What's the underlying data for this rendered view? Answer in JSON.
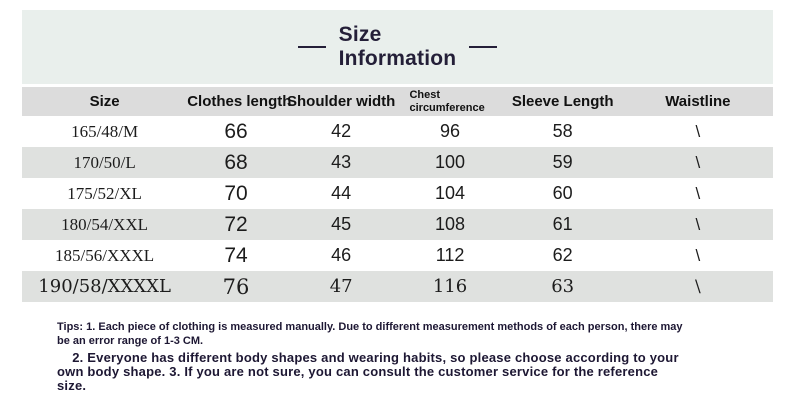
{
  "title": {
    "line1": "Size",
    "line2": "Information"
  },
  "table": {
    "headers": [
      "Size",
      "Clothes length",
      "Shoulder width",
      "Chest circumference",
      "Sleeve Length",
      "Waistline"
    ],
    "rows": [
      [
        "165/48/M",
        "66",
        "42",
        "96",
        "58",
        "\\"
      ],
      [
        "170/50/L",
        "68",
        "43",
        "100",
        "59",
        "\\"
      ],
      [
        "175/52/XL",
        "70",
        "44",
        "104",
        "60",
        "\\"
      ],
      [
        "180/54/XXL",
        "72",
        "45",
        "108",
        "61",
        "\\"
      ],
      [
        "185/56/XXXL",
        "74",
        "46",
        "112",
        "62",
        "\\"
      ],
      [
        "190/58/XXXXL",
        "76",
        "47",
        "116",
        "63",
        "\\"
      ]
    ]
  },
  "tips": {
    "small": "Tips: 1. Each piece of clothing is measured manually. Due to different measurement methods of each person, there may\nbe an error range of 1-3 CM.",
    "large": "    2. Everyone has different body shapes and wearing habits, so please choose according to your\nown body shape. 3. If you are not sure, you can consult the customer service for the reference\nsize."
  },
  "colors": {
    "title_panel_bg": "#e9efec",
    "header_row_bg": "#dcdcdc",
    "stripe_row_bg": "#dfe1df",
    "title_ink": "#241f38"
  }
}
